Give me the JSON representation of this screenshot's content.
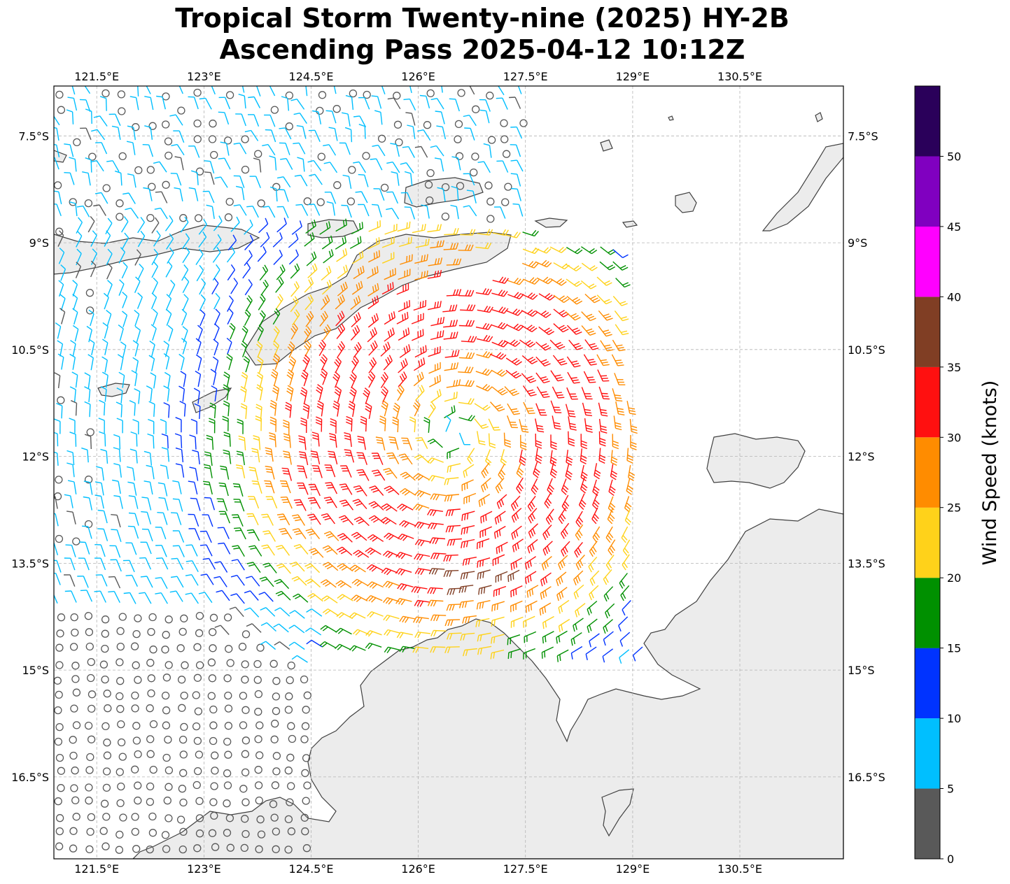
{
  "title": {
    "line1": "Tropical Storm Twenty-nine (2025) HY-2B",
    "line2": "Ascending Pass 2025-04-12 10:12Z"
  },
  "map": {
    "lon_range": [
      120.9,
      131.95
    ],
    "lat_range": [
      -17.65,
      -6.8
    ],
    "lon_ticks": [
      "121.5°E",
      "123°E",
      "124.5°E",
      "126°E",
      "127.5°E",
      "129°E",
      "130.5°E"
    ],
    "lon_tick_values": [
      121.5,
      123,
      124.5,
      126,
      127.5,
      129,
      130.5
    ],
    "lat_ticks": [
      "7.5°S",
      "9°S",
      "10.5°S",
      "12°S",
      "13.5°S",
      "15°S",
      "16.5°S"
    ],
    "lat_tick_values": [
      -7.5,
      -9,
      -10.5,
      -12,
      -13.5,
      -15,
      -16.5
    ],
    "gridlines": true,
    "storm_center": {
      "lon": 126.5,
      "lat": -11.7
    },
    "land_color": "#ececec",
    "coast_color": "#404040"
  },
  "colorbar": {
    "label": "Wind Speed (knots)",
    "ticks": [
      "0",
      "5",
      "10",
      "15",
      "20",
      "25",
      "30",
      "35",
      "40",
      "45",
      "50"
    ],
    "bins": [
      {
        "from": 0,
        "to": 5,
        "color": "#595959"
      },
      {
        "from": 5,
        "to": 10,
        "color": "#00bfff"
      },
      {
        "from": 10,
        "to": 15,
        "color": "#0033ff"
      },
      {
        "from": 15,
        "to": 20,
        "color": "#009000"
      },
      {
        "from": 20,
        "to": 25,
        "color": "#ffd21a"
      },
      {
        "from": 25,
        "to": 30,
        "color": "#ff8c00"
      },
      {
        "from": 30,
        "to": 35,
        "color": "#ff1010"
      },
      {
        "from": 35,
        "to": 40,
        "color": "#803e24"
      },
      {
        "from": 40,
        "to": 45,
        "color": "#ff00ff"
      },
      {
        "from": 45,
        "to": 50,
        "color": "#8000c0"
      },
      {
        "from": 50,
        "to": 55,
        "color": "#2a005a"
      }
    ]
  }
}
